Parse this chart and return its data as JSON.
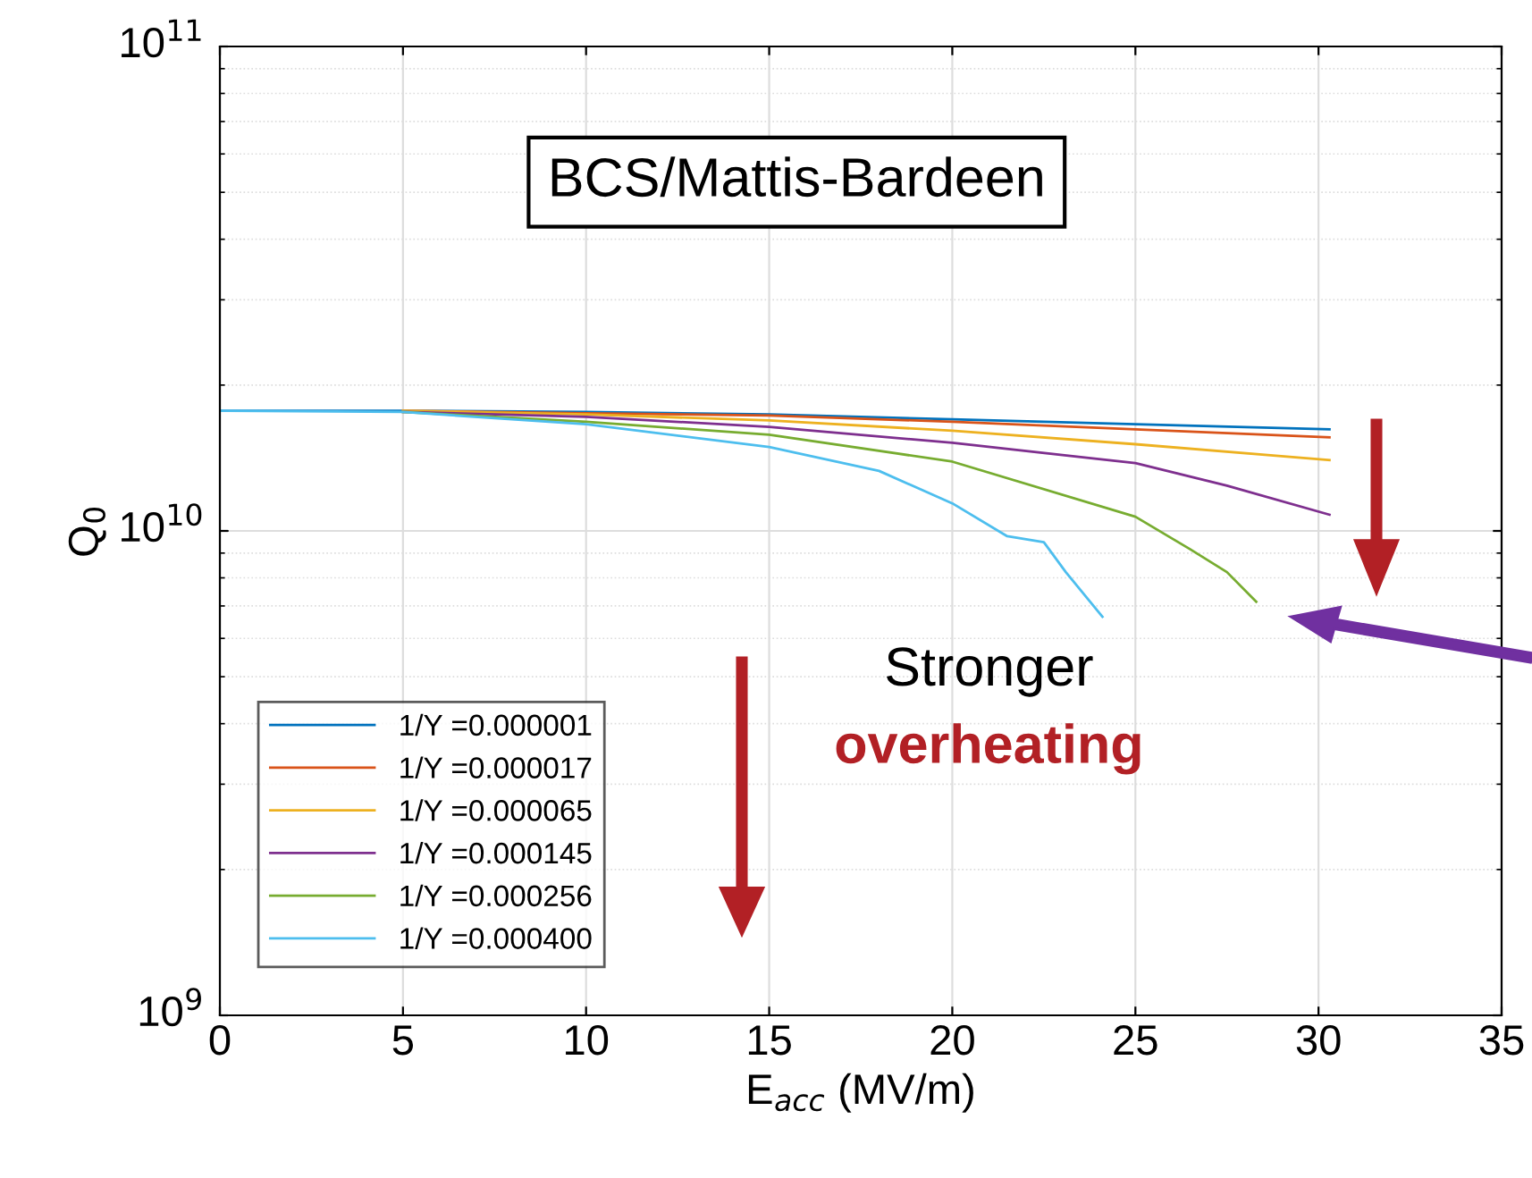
{
  "chart_data": {
    "type": "line",
    "xlabel": "E$_{acc}$ (MV/m)",
    "ylabel": "Q$_{0}$",
    "log": "y",
    "grid": true,
    "legend": "bottom left",
    "line_style": "solid",
    "marker": "none",
    "xlim": [
      0,
      35
    ],
    "xticks": [
      0,
      5,
      10,
      15,
      20,
      25,
      30,
      35
    ],
    "ylim": [
      1000000000.0,
      100000000000.0
    ],
    "yticks": [
      {
        "value": 1000000000.0,
        "label": "10$^{9}$"
      },
      {
        "value": 10000000000.0,
        "label": "10$^{10}$"
      },
      {
        "value": 100000000000.0,
        "label": "10$^{11}$"
      }
    ],
    "series": [
      {
        "name": "1/Y =0.000001",
        "color": "#0072bd",
        "x": [
          0,
          5,
          10,
          15,
          20,
          25,
          30.3
        ],
        "values": [
          17700000000.0,
          17700000000.0,
          17600000000.0,
          17400000000.0,
          17000000000.0,
          16600000000.0,
          16200000000.0
        ]
      },
      {
        "name": "1/Y =0.000017",
        "color": "#d95319",
        "x": [
          5,
          10,
          15,
          20,
          25,
          30.3
        ],
        "values": [
          17700000000.0,
          17500000000.0,
          17300000000.0,
          16800000000.0,
          16200000000.0,
          15600000000.0
        ]
      },
      {
        "name": "1/Y =0.000065",
        "color": "#edb120",
        "x": [
          5,
          10,
          15,
          20,
          25,
          30.3
        ],
        "values": [
          17700000000.0,
          17400000000.0,
          16900000000.0,
          16100000000.0,
          15100000000.0,
          14000000000.0
        ]
      },
      {
        "name": "1/Y =0.000145",
        "color": "#7e2f8e",
        "x": [
          5,
          10,
          15,
          20,
          25,
          27.5,
          30.3
        ],
        "values": [
          17600000000.0,
          17200000000.0,
          16400000000.0,
          15200000000.0,
          13800000000.0,
          12400000000.0,
          10800000000.0
        ]
      },
      {
        "name": "1/Y =0.000256",
        "color": "#77ac30",
        "x": [
          5,
          10,
          15,
          20,
          25,
          26.5,
          27.5,
          28.3
        ],
        "values": [
          17600000000.0,
          16800000000.0,
          15800000000.0,
          13900000000.0,
          10700000000.0,
          9160000000.0,
          8220000000.0,
          7140000000.0
        ]
      },
      {
        "name": "1/Y =0.000400",
        "color": "#4dbeee",
        "x": [
          0,
          5,
          10,
          15,
          18,
          20,
          21.5,
          22.5,
          23.1,
          24.1
        ],
        "values": [
          17700000000.0,
          17600000000.0,
          16600000000.0,
          14900000000.0,
          13300000000.0,
          11400000000.0,
          9750000000.0,
          9480000000.0,
          8220000000.0,
          6650000000.0
        ]
      }
    ],
    "annotations": [
      "BCS/Mattis-Bardeen",
      "Stronger",
      "overheating"
    ]
  }
}
